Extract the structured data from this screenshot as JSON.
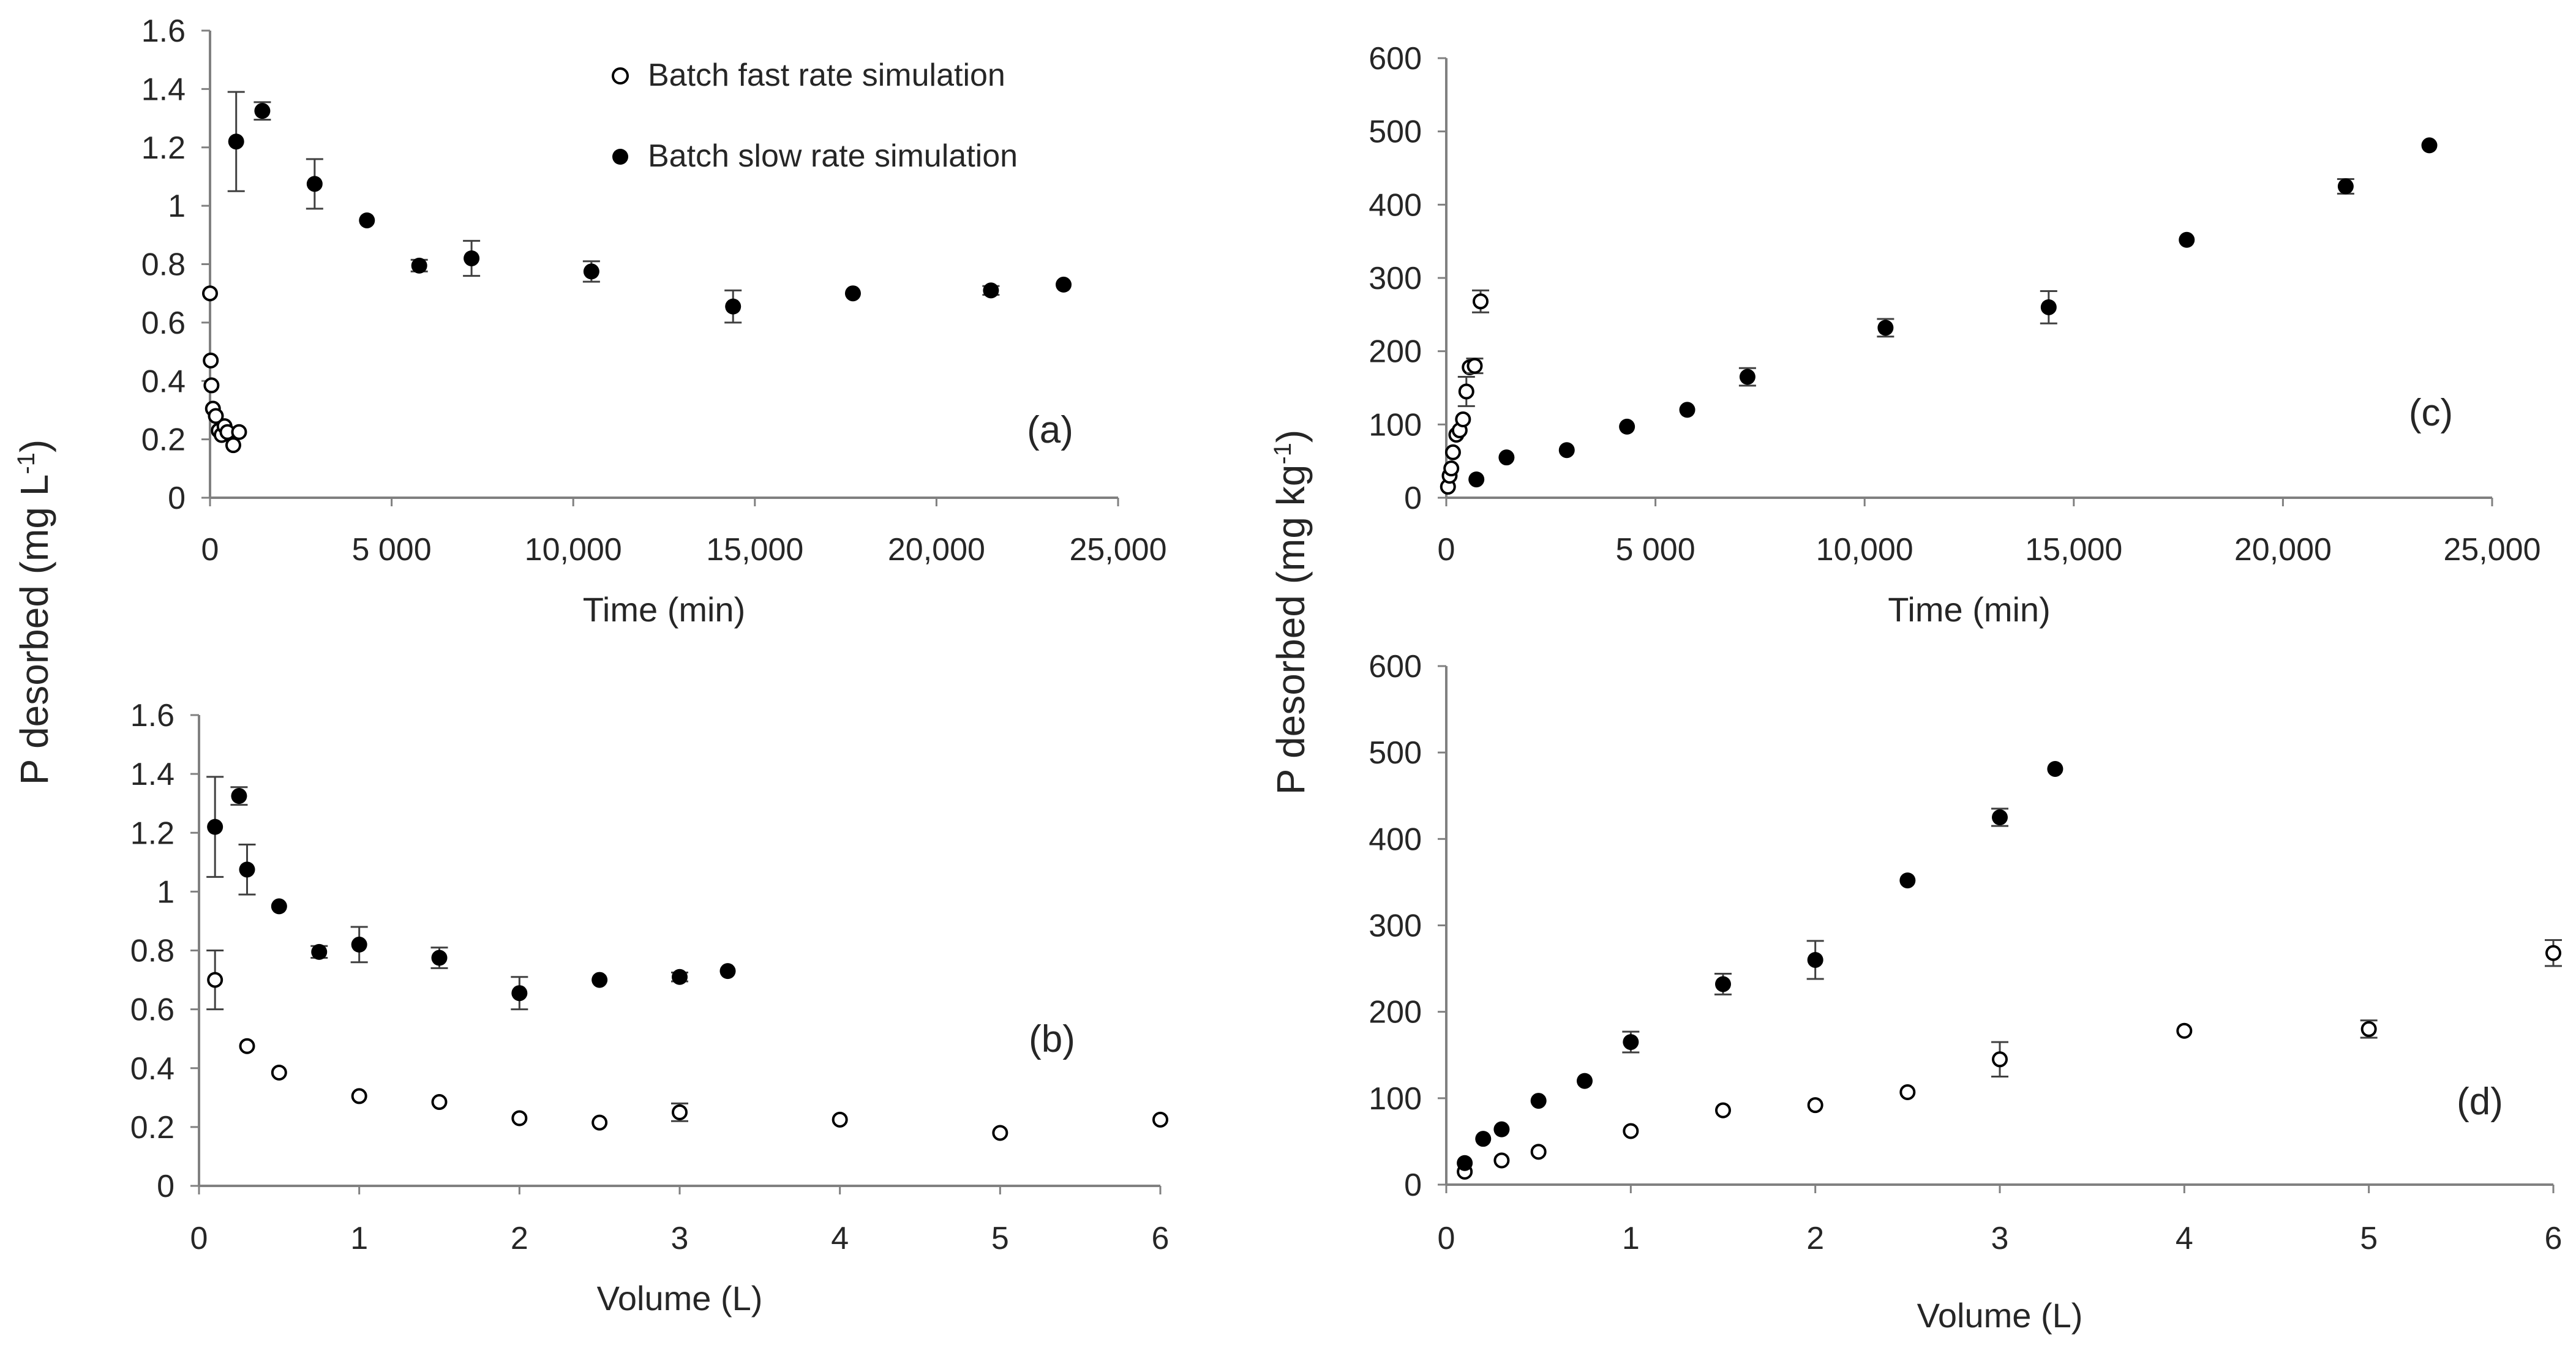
{
  "figure": {
    "shared_ylabel_left": "P desorbed (mg L",
    "shared_ylabel_left_sup": "-1",
    "shared_ylabel_left_tail": ")",
    "shared_ylabel_right": "P desorbed (mg kg",
    "shared_ylabel_right_sup": "-1",
    "shared_ylabel_right_tail": ")",
    "legend": {
      "fast": "Batch fast rate simulation",
      "slow": "Batch slow rate simulation"
    },
    "colors": {
      "filled": "#000000",
      "open_fill": "#ffffff",
      "stroke": "#000000"
    }
  },
  "chart_data": [
    {
      "id": "a",
      "type": "scatter",
      "panel_label": "(a)",
      "xlabel": "Time (min)",
      "ylabel": "P desorbed (mg L-1)",
      "xlim": [
        0,
        25000
      ],
      "ylim": [
        0,
        1.6
      ],
      "xticks": [
        0,
        5000,
        10000,
        15000,
        20000,
        25000
      ],
      "xtick_labels": [
        "0",
        "5 000",
        "10,000",
        "15,000",
        "20,000",
        "25,000"
      ],
      "yticks": [
        0,
        0.2,
        0.4,
        0.6,
        0.8,
        1,
        1.2,
        1.4,
        1.6
      ],
      "ytick_labels": [
        "0",
        "0.2",
        "0.4",
        "0.6",
        "0.8",
        "1",
        "1.2",
        "1.4",
        "1.6"
      ],
      "series": [
        {
          "name": "Batch fast rate simulation",
          "marker": "open",
          "points": [
            {
              "x": 0,
              "y": 0.7,
              "err": 0
            },
            {
              "x": 20,
              "y": 0.47,
              "err": 0
            },
            {
              "x": 40,
              "y": 0.385,
              "err": 0
            },
            {
              "x": 80,
              "y": 0.305,
              "err": 0
            },
            {
              "x": 160,
              "y": 0.28,
              "err": 0
            },
            {
              "x": 240,
              "y": 0.23,
              "err": 0
            },
            {
              "x": 320,
              "y": 0.215,
              "err": 0
            },
            {
              "x": 400,
              "y": 0.245,
              "err": 0
            },
            {
              "x": 480,
              "y": 0.225,
              "err": 0
            },
            {
              "x": 640,
              "y": 0.18,
              "err": 0
            },
            {
              "x": 800,
              "y": 0.225,
              "err": 0
            }
          ]
        },
        {
          "name": "Batch slow rate simulation",
          "marker": "filled",
          "points": [
            {
              "x": 720,
              "y": 1.22,
              "err": 0.17
            },
            {
              "x": 1440,
              "y": 1.325,
              "err": 0.03
            },
            {
              "x": 2880,
              "y": 1.075,
              "err": 0.085
            },
            {
              "x": 4320,
              "y": 0.95,
              "err": 0
            },
            {
              "x": 5760,
              "y": 0.795,
              "err": 0.02
            },
            {
              "x": 7200,
              "y": 0.82,
              "err": 0.06
            },
            {
              "x": 10500,
              "y": 0.775,
              "err": 0.035
            },
            {
              "x": 14400,
              "y": 0.655,
              "err": 0.055
            },
            {
              "x": 17700,
              "y": 0.7,
              "err": 0
            },
            {
              "x": 21500,
              "y": 0.71,
              "err": 0.015
            },
            {
              "x": 23500,
              "y": 0.73,
              "err": 0
            }
          ]
        }
      ]
    },
    {
      "id": "b",
      "type": "scatter",
      "panel_label": "(b)",
      "xlabel": "Volume (L)",
      "ylabel": "P desorbed (mg L-1)",
      "xlim": [
        0,
        6
      ],
      "ylim": [
        0,
        1.6
      ],
      "xticks": [
        0,
        1,
        2,
        3,
        4,
        5,
        6
      ],
      "xtick_labels": [
        "0",
        "1",
        "2",
        "3",
        "4",
        "5",
        "6"
      ],
      "yticks": [
        0,
        0.2,
        0.4,
        0.6,
        0.8,
        1,
        1.2,
        1.4,
        1.6
      ],
      "ytick_labels": [
        "0",
        "0.2",
        "0.4",
        "0.6",
        "0.8",
        "1",
        "1.2",
        "1.4",
        "1.6"
      ],
      "series": [
        {
          "name": "Batch fast rate simulation",
          "marker": "open",
          "points": [
            {
              "x": 0.1,
              "y": 0.7,
              "err": 0.1
            },
            {
              "x": 0.3,
              "y": 0.475,
              "err": 0
            },
            {
              "x": 0.5,
              "y": 0.385,
              "err": 0
            },
            {
              "x": 1,
              "y": 0.305,
              "err": 0
            },
            {
              "x": 1.5,
              "y": 0.285,
              "err": 0
            },
            {
              "x": 2,
              "y": 0.23,
              "err": 0
            },
            {
              "x": 2.5,
              "y": 0.215,
              "err": 0
            },
            {
              "x": 3,
              "y": 0.25,
              "err": 0.03
            },
            {
              "x": 4,
              "y": 0.225,
              "err": 0
            },
            {
              "x": 5,
              "y": 0.18,
              "err": 0
            },
            {
              "x": 6,
              "y": 0.225,
              "err": 0
            }
          ]
        },
        {
          "name": "Batch slow rate simulation",
          "marker": "filled",
          "points": [
            {
              "x": 0.1,
              "y": 1.22,
              "err": 0.17
            },
            {
              "x": 0.25,
              "y": 1.325,
              "err": 0.03
            },
            {
              "x": 0.3,
              "y": 1.075,
              "err": 0.085
            },
            {
              "x": 0.5,
              "y": 0.95,
              "err": 0
            },
            {
              "x": 0.75,
              "y": 0.795,
              "err": 0.02
            },
            {
              "x": 1,
              "y": 0.82,
              "err": 0.06
            },
            {
              "x": 1.5,
              "y": 0.775,
              "err": 0.035
            },
            {
              "x": 2,
              "y": 0.655,
              "err": 0.055
            },
            {
              "x": 2.5,
              "y": 0.7,
              "err": 0
            },
            {
              "x": 3,
              "y": 0.71,
              "err": 0.015
            },
            {
              "x": 3.3,
              "y": 0.73,
              "err": 0
            }
          ]
        }
      ]
    },
    {
      "id": "c",
      "type": "scatter",
      "panel_label": "(c)",
      "xlabel": "Time (min)",
      "ylabel": "P desorbed (mg kg-1)",
      "xlim": [
        0,
        25000
      ],
      "ylim": [
        0,
        600
      ],
      "xticks": [
        0,
        5000,
        10000,
        15000,
        20000,
        25000
      ],
      "xtick_labels": [
        "0",
        "5 000",
        "10,000",
        "15,000",
        "20,000",
        "25,000"
      ],
      "yticks": [
        0,
        100,
        200,
        300,
        400,
        500,
        600
      ],
      "ytick_labels": [
        "0",
        "100",
        "200",
        "300",
        "400",
        "500",
        "600"
      ],
      "series": [
        {
          "name": "Batch fast rate simulation",
          "marker": "open",
          "points": [
            {
              "x": 40,
              "y": 15,
              "err": 0
            },
            {
              "x": 80,
              "y": 30,
              "err": 0
            },
            {
              "x": 120,
              "y": 40,
              "err": 0
            },
            {
              "x": 160,
              "y": 62,
              "err": 0
            },
            {
              "x": 240,
              "y": 86,
              "err": 0
            },
            {
              "x": 320,
              "y": 92,
              "err": 0
            },
            {
              "x": 400,
              "y": 107,
              "err": 0
            },
            {
              "x": 480,
              "y": 145,
              "err": 20
            },
            {
              "x": 560,
              "y": 178,
              "err": 0
            },
            {
              "x": 680,
              "y": 180,
              "err": 10
            },
            {
              "x": 820,
              "y": 268,
              "err": 15
            }
          ]
        },
        {
          "name": "Batch slow rate simulation",
          "marker": "filled",
          "points": [
            {
              "x": 720,
              "y": 25,
              "err": 0
            },
            {
              "x": 1440,
              "y": 55,
              "err": 0
            },
            {
              "x": 2880,
              "y": 65,
              "err": 0
            },
            {
              "x": 4320,
              "y": 97,
              "err": 0
            },
            {
              "x": 5760,
              "y": 120,
              "err": 0
            },
            {
              "x": 7200,
              "y": 165,
              "err": 12
            },
            {
              "x": 10500,
              "y": 232,
              "err": 12
            },
            {
              "x": 14400,
              "y": 260,
              "err": 22
            },
            {
              "x": 17700,
              "y": 352,
              "err": 0
            },
            {
              "x": 21500,
              "y": 425,
              "err": 10
            },
            {
              "x": 23500,
              "y": 481,
              "err": 0
            }
          ]
        }
      ]
    },
    {
      "id": "d",
      "type": "scatter",
      "panel_label": "(d)",
      "xlabel": "Volume (L)",
      "ylabel": "P desorbed (mg kg-1)",
      "xlim": [
        0,
        6
      ],
      "ylim": [
        0,
        600
      ],
      "xticks": [
        0,
        1,
        2,
        3,
        4,
        5,
        6
      ],
      "xtick_labels": [
        "0",
        "1",
        "2",
        "3",
        "4",
        "5",
        "6"
      ],
      "yticks": [
        0,
        100,
        200,
        300,
        400,
        500,
        600
      ],
      "ytick_labels": [
        "0",
        "100",
        "200",
        "300",
        "400",
        "500",
        "600"
      ],
      "series": [
        {
          "name": "Batch fast rate simulation",
          "marker": "open",
          "points": [
            {
              "x": 0.1,
              "y": 15,
              "err": 0
            },
            {
              "x": 0.3,
              "y": 28,
              "err": 0
            },
            {
              "x": 0.5,
              "y": 38,
              "err": 0
            },
            {
              "x": 1,
              "y": 62,
              "err": 0
            },
            {
              "x": 1.5,
              "y": 86,
              "err": 0
            },
            {
              "x": 2,
              "y": 92,
              "err": 0
            },
            {
              "x": 2.5,
              "y": 107,
              "err": 0
            },
            {
              "x": 3,
              "y": 145,
              "err": 20
            },
            {
              "x": 4,
              "y": 178,
              "err": 0
            },
            {
              "x": 5,
              "y": 180,
              "err": 10
            },
            {
              "x": 6,
              "y": 268,
              "err": 15
            }
          ]
        },
        {
          "name": "Batch slow rate simulation",
          "marker": "filled",
          "points": [
            {
              "x": 0.1,
              "y": 25,
              "err": 0
            },
            {
              "x": 0.2,
              "y": 53,
              "err": 0
            },
            {
              "x": 0.3,
              "y": 64,
              "err": 0
            },
            {
              "x": 0.5,
              "y": 97,
              "err": 0
            },
            {
              "x": 0.75,
              "y": 120,
              "err": 0
            },
            {
              "x": 1,
              "y": 165,
              "err": 12
            },
            {
              "x": 1.5,
              "y": 232,
              "err": 12
            },
            {
              "x": 2,
              "y": 260,
              "err": 22
            },
            {
              "x": 2.5,
              "y": 352,
              "err": 0
            },
            {
              "x": 3,
              "y": 425,
              "err": 10
            },
            {
              "x": 3.3,
              "y": 481,
              "err": 0
            }
          ]
        }
      ]
    }
  ]
}
